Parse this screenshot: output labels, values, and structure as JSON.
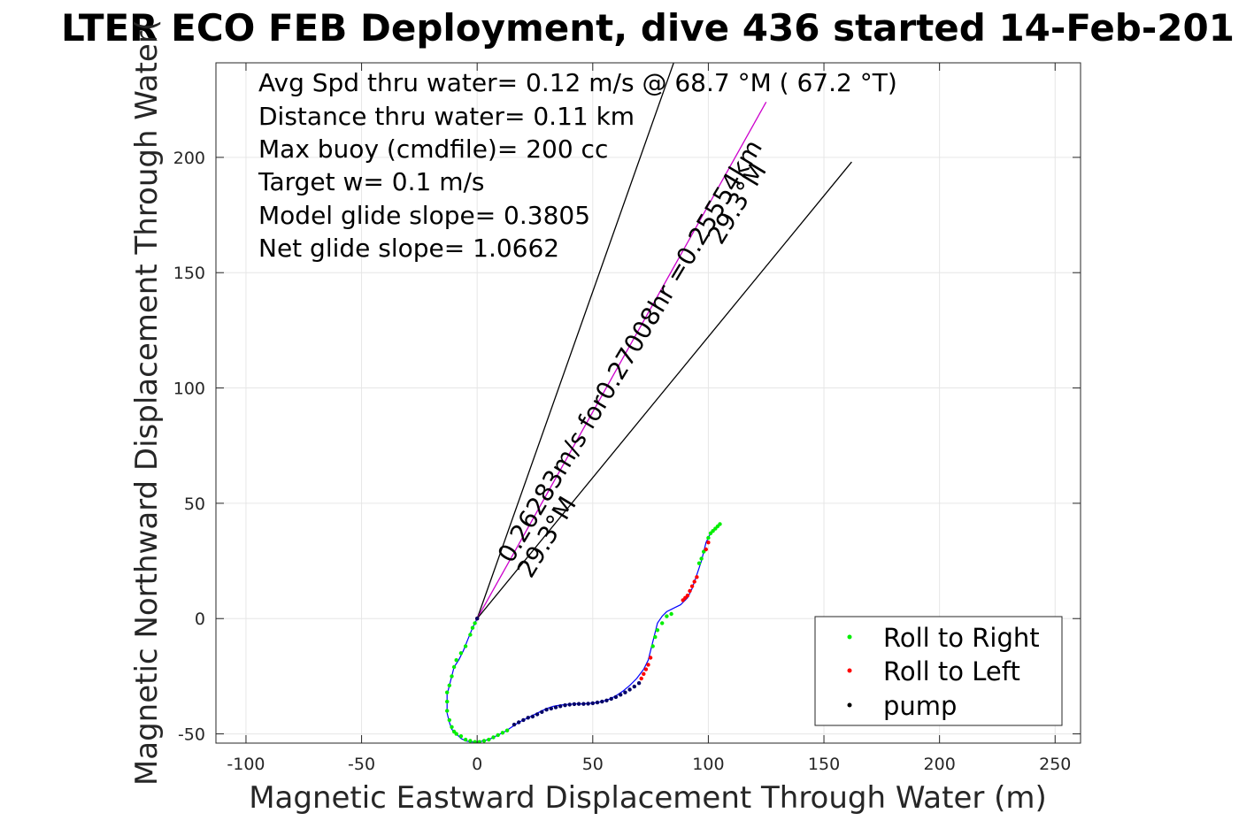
{
  "chart_data": {
    "type": "scatter",
    "title": "LTER ECO FEB Deployment, dive 436 started 14-Feb-201",
    "xlabel": "Magnetic Eastward Displacement Through Water (m)",
    "ylabel": "Magnetic Northward Displacement Through Water(",
    "xlim": [
      -113,
      261
    ],
    "ylim": [
      -54,
      241
    ],
    "xticks": [
      -100,
      -50,
      0,
      50,
      100,
      150,
      200,
      250
    ],
    "yticks": [
      -50,
      0,
      50,
      100,
      150,
      200
    ],
    "xtick_labels": [
      "-100",
      "-50",
      "0",
      "50",
      "100",
      "150",
      "200",
      "250"
    ],
    "ytick_labels": [
      "-50",
      "0",
      "50",
      "100",
      "150",
      "200"
    ],
    "grid": true,
    "info_lines": [
      "Avg Spd thru water=  0.12 m/s @  68.7 °M ( 67.2 °T)",
      "Distance thru water=  0.11 km",
      "Max buoy (cmdfile)= 200 cc",
      "Target w= 0.1 m/s",
      "Model glide slope= 0.3805",
      "Net glide slope= 1.0662"
    ],
    "annotations": {
      "main": "0.26283m/s for0.27008hr =0.25554km",
      "angle_upper": "29.3°M",
      "angle_lower": "29.3°M"
    },
    "reference_lines": [
      {
        "from": [
          0,
          0
        ],
        "to": [
          85,
          241
        ],
        "color": "#000000"
      },
      {
        "from": [
          0,
          0
        ],
        "to": [
          125,
          224
        ],
        "color": "#cc00cc"
      },
      {
        "from": [
          0,
          0
        ],
        "to": [
          162,
          198
        ],
        "color": "#000000"
      }
    ],
    "legend": {
      "placement": "bottom-right",
      "entries": [
        {
          "label": "Roll to Right",
          "color": "#00ee00"
        },
        {
          "label": "Roll to Left",
          "color": "#ff0000"
        },
        {
          "label": "pump",
          "color": "#000000"
        }
      ]
    },
    "track": {
      "color": "#0000ff",
      "x": [
        0,
        -2,
        -4,
        -6,
        -8,
        -10,
        -11,
        -12,
        -13,
        -13,
        -13,
        -12,
        -11,
        -9,
        -7,
        -5,
        -3,
        0,
        3,
        6,
        9,
        12,
        15,
        18,
        21,
        24,
        27,
        30,
        33,
        36,
        39,
        42,
        45,
        48,
        51,
        54,
        57,
        60,
        63,
        66,
        69,
        72,
        74,
        75,
        76,
        77,
        78,
        80,
        82,
        84,
        86,
        88,
        89,
        90,
        91,
        92,
        93,
        94,
        95,
        96,
        97,
        98,
        99,
        100,
        101,
        102,
        103,
        104,
        105
      ],
      "y": [
        0,
        -4,
        -9,
        -14,
        -18,
        -21,
        -25,
        -29,
        -33,
        -37,
        -41,
        -45,
        -48,
        -50,
        -52,
        -53,
        -53.5,
        -53.5,
        -53,
        -52,
        -50.5,
        -49,
        -47,
        -45,
        -43.5,
        -42,
        -40.5,
        -39,
        -38,
        -37.5,
        -37.2,
        -37,
        -37,
        -36.8,
        -36.5,
        -36,
        -35,
        -33.5,
        -31.5,
        -29,
        -26,
        -22,
        -18,
        -14,
        -10,
        -6,
        -2,
        1,
        3,
        4,
        5,
        6,
        7,
        8,
        9,
        11,
        13,
        16,
        19,
        22,
        25,
        29,
        33,
        35,
        37,
        38,
        39,
        40,
        41
      ]
    },
    "roll_right": {
      "x": [
        -1,
        -2,
        -3,
        -5,
        -7,
        -9,
        -10,
        -11,
        -12,
        -13,
        -13,
        -13,
        -12,
        -11,
        -10,
        -9,
        -7,
        -5,
        -3,
        -1,
        1,
        3,
        5,
        7,
        9,
        11,
        13,
        76,
        77,
        78,
        80,
        82,
        84,
        96,
        97,
        98,
        100,
        101,
        102,
        103,
        104,
        105
      ],
      "y": [
        -2,
        -4,
        -7,
        -12,
        -15,
        -18,
        -21,
        -25,
        -29,
        -32,
        -36,
        -40,
        -44,
        -47,
        -49,
        -50,
        -51,
        -52.5,
        -53,
        -53.5,
        -53.5,
        -53,
        -52.5,
        -51.5,
        -50.5,
        -49.5,
        -48.5,
        -12,
        -8,
        -5,
        -2,
        1,
        2,
        24,
        26,
        29,
        35,
        37,
        38,
        39,
        40,
        41
      ]
    },
    "roll_left": {
      "x": [
        0,
        71,
        72,
        73,
        74,
        75,
        89,
        90,
        91,
        92,
        93,
        94,
        95,
        99,
        100
      ],
      "y": [
        0,
        -26,
        -24,
        -22,
        -20,
        -17,
        8,
        9,
        10,
        12,
        14,
        16,
        18,
        30,
        33
      ]
    },
    "pump": {
      "x": [
        0,
        16,
        18,
        20,
        22,
        24,
        26,
        28,
        30,
        32,
        34,
        36,
        38,
        40,
        42,
        44,
        46,
        48,
        50,
        52,
        54,
        56,
        58,
        60,
        62,
        64,
        66,
        68,
        70
      ],
      "y": [
        0,
        -46,
        -45,
        -44,
        -43,
        -42.5,
        -41.5,
        -40.5,
        -39.5,
        -39,
        -38.5,
        -38,
        -37.6,
        -37.3,
        -37.1,
        -37,
        -37,
        -36.9,
        -36.7,
        -36.4,
        -36,
        -35.5,
        -34.8,
        -34,
        -33,
        -32,
        -30.8,
        -29.5,
        -28
      ]
    }
  }
}
